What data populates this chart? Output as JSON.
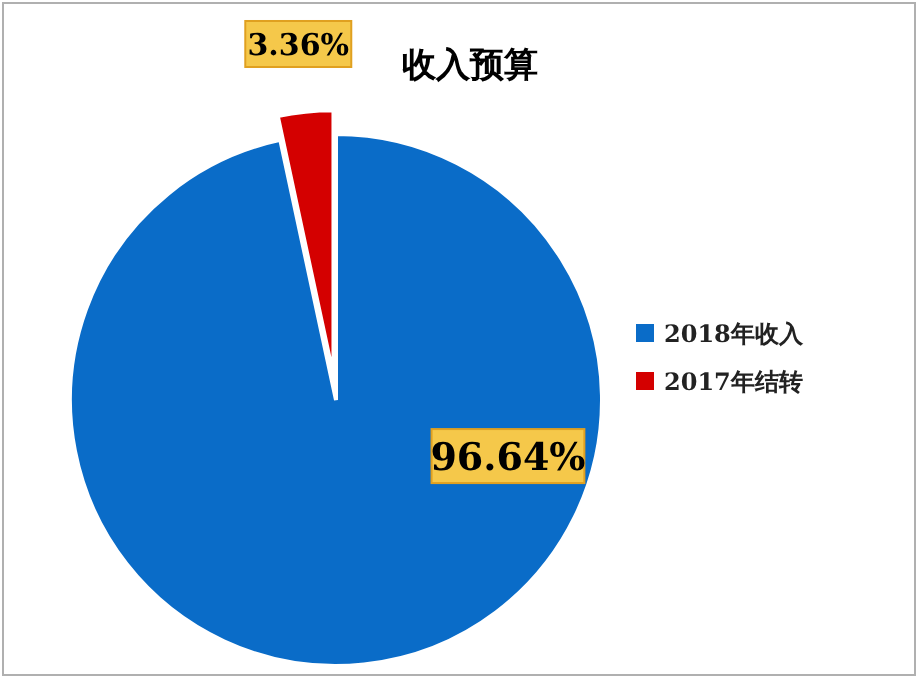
{
  "chart_data": {
    "type": "pie",
    "title": "收入预算",
    "categories": [
      "2018年收入",
      "2017年结转"
    ],
    "values": [
      96.64,
      3.36
    ],
    "colors": [
      "#0a6cc8",
      "#d40000"
    ],
    "value_labels": [
      "96.64%",
      "3.36%"
    ],
    "legend": "right"
  }
}
